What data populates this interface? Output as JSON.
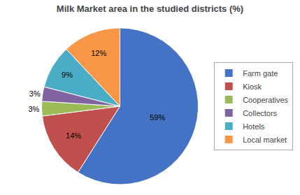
{
  "chart_data": {
    "type": "pie",
    "title": "Milk Market area in the studied districts (%)",
    "categories": [
      "Farm gate",
      "Kiosk",
      "Cooperatives",
      "Collectors",
      "Hotels",
      "Local market"
    ],
    "values": [
      59,
      14,
      3,
      3,
      9,
      12
    ],
    "value_labels": [
      "59%",
      "14%",
      "3%",
      "3%",
      "9%",
      "12%"
    ],
    "colors": [
      "#4472C4",
      "#C0504D",
      "#9BBB59",
      "#8064A2",
      "#4BACC6",
      "#F79646"
    ],
    "data_labels": true,
    "legend": "right"
  }
}
